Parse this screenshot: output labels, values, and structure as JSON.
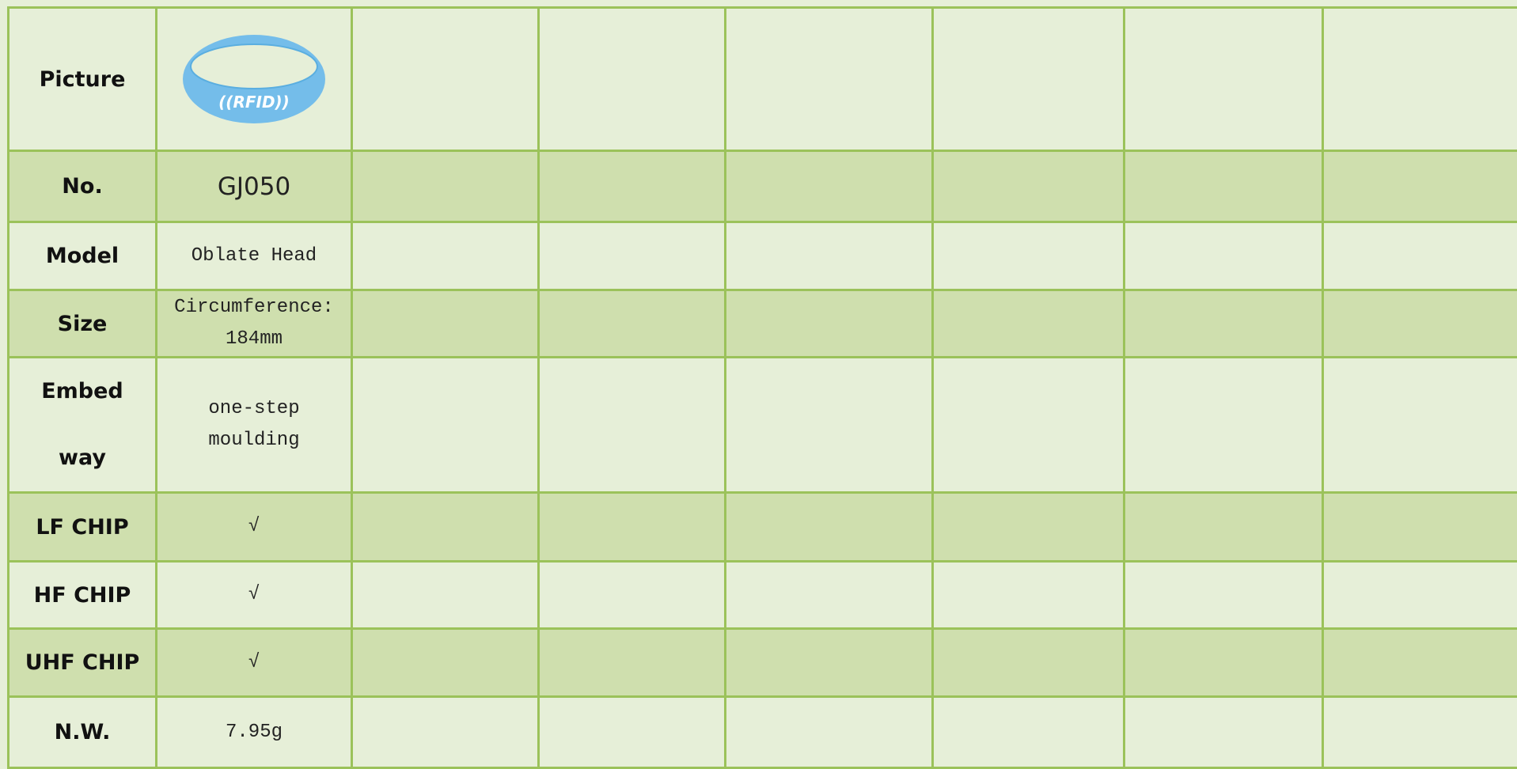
{
  "table": {
    "rows": [
      {
        "header": "Picture",
        "image_text": "((RFID))"
      },
      {
        "header": "No.",
        "value": "GJ050"
      },
      {
        "header": "Model",
        "value": "Oblate Head"
      },
      {
        "header": "Size",
        "value": "Circumference: 184mm"
      },
      {
        "header": "Embed way",
        "value": "one-step moulding"
      },
      {
        "header": "LF CHIP",
        "value": "√"
      },
      {
        "header": "HF CHIP",
        "value": "√"
      },
      {
        "header": "UHF CHIP",
        "value": "√"
      },
      {
        "header": "N.W.",
        "value": "7.95g"
      }
    ]
  }
}
